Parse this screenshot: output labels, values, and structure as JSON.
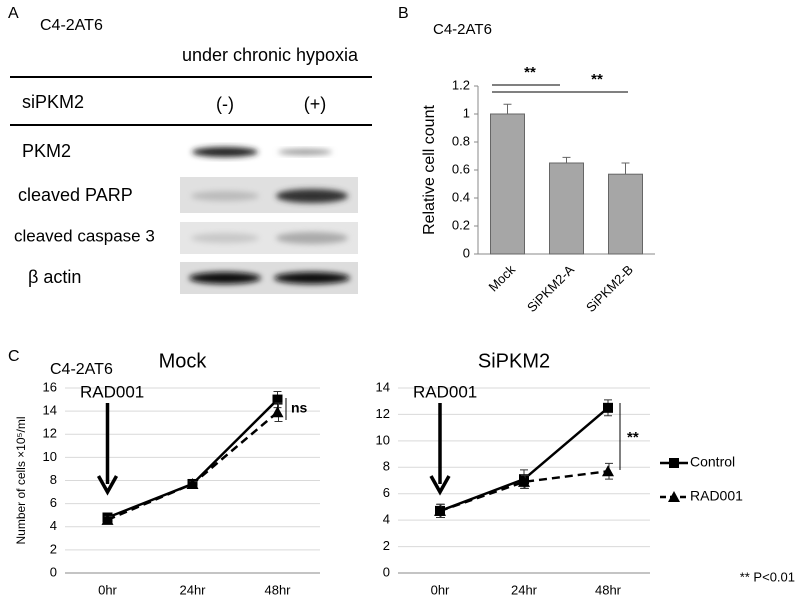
{
  "western_blot": {
    "panel_label": "A",
    "cell_line": "C4-2AT6",
    "condition": "under chronic hypoxia",
    "row_header": "siPKM2",
    "lanes": [
      "(-)",
      "(+)"
    ],
    "rows": [
      "PKM2",
      "cleaved PARP",
      "cleaved caspase 3",
      "β actin"
    ]
  },
  "panel_c": {
    "panel_label": "C",
    "cell_line": "C4-2AT6"
  },
  "chart_data": [
    {
      "type": "bar",
      "panel_label": "B",
      "subtitle": "C4-2AT6",
      "y_label": "Relative cell count",
      "categories": [
        "Mock",
        "SiPKM2-A",
        "SiPKM2-B"
      ],
      "values": [
        1.0,
        0.65,
        0.57
      ],
      "errors": [
        0.07,
        0.04,
        0.08
      ],
      "color": "#a6a6a6",
      "ylim": [
        0,
        1.2
      ],
      "yticks": [
        0,
        0.2,
        0.4,
        0.6,
        0.8,
        1,
        1.2
      ],
      "grid": false,
      "annotations": [
        "**",
        "**"
      ]
    },
    {
      "type": "line",
      "title": "Mock",
      "y_label": "Number of cells ×10⁵/ml",
      "categories": [
        "0hr",
        "24hr",
        "48hr"
      ],
      "series": [
        {
          "name": "Control",
          "color": "#000000",
          "marker": "square",
          "dash": false,
          "values": [
            4.8,
            7.7,
            15.0
          ],
          "errors": [
            0.3,
            0.2,
            0.7
          ]
        },
        {
          "name": "RAD001",
          "color": "#000000",
          "marker": "triangle",
          "dash": true,
          "values": [
            4.6,
            7.7,
            13.9
          ],
          "errors": [
            0.3,
            0.2,
            0.8
          ]
        }
      ],
      "ylim": [
        0,
        16
      ],
      "yticks": [
        0,
        2,
        4,
        6,
        8,
        10,
        12,
        14,
        16
      ],
      "grid": true,
      "legend": false,
      "annotations": [
        "RAD001",
        "ns"
      ]
    },
    {
      "type": "line",
      "title": "SiPKM2",
      "categories": [
        "0hr",
        "24hr",
        "48hr"
      ],
      "series": [
        {
          "name": "Control",
          "color": "#000000",
          "marker": "square",
          "dash": false,
          "values": [
            4.7,
            7.1,
            12.5
          ],
          "errors": [
            0.5,
            0.7,
            0.6
          ]
        },
        {
          "name": "RAD001",
          "color": "#000000",
          "marker": "triangle",
          "dash": true,
          "values": [
            4.7,
            6.9,
            7.7
          ],
          "errors": [
            0.5,
            0.5,
            0.6
          ]
        }
      ],
      "ylim": [
        0,
        14
      ],
      "yticks": [
        0,
        2,
        4,
        6,
        8,
        10,
        12,
        14
      ],
      "grid": true,
      "legend": "right",
      "annotations": [
        "RAD001",
        "**"
      ]
    }
  ],
  "footnote": "** P<0.01"
}
